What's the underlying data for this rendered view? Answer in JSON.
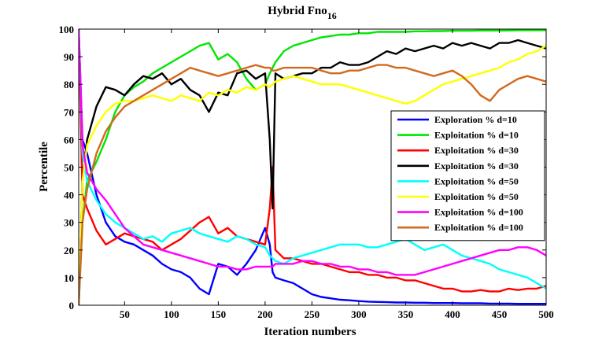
{
  "chart_data": {
    "type": "line",
    "title": "Hybrid Fno",
    "title_subscript": "16",
    "xlabel": "Iteration numbers",
    "ylabel": "Percentile",
    "xlim": [
      1,
      500
    ],
    "ylim": [
      0,
      100
    ],
    "x_ticks": [
      50,
      100,
      150,
      200,
      250,
      300,
      350,
      400,
      450,
      500
    ],
    "y_ticks": [
      0,
      10,
      20,
      30,
      40,
      50,
      60,
      70,
      80,
      90,
      100
    ],
    "legend_position": "center-right",
    "grid": false,
    "x": [
      1,
      5,
      10,
      20,
      30,
      40,
      50,
      60,
      70,
      80,
      90,
      100,
      110,
      120,
      130,
      140,
      150,
      160,
      170,
      180,
      190,
      200,
      205,
      208,
      211,
      220,
      230,
      240,
      250,
      260,
      270,
      280,
      290,
      300,
      310,
      320,
      330,
      340,
      350,
      360,
      370,
      380,
      390,
      400,
      410,
      420,
      430,
      440,
      450,
      460,
      470,
      480,
      490,
      500
    ],
    "series": [
      {
        "name": "Exploration % d=10",
        "color": "#0000ff",
        "values": [
          100,
          60,
          55,
          40,
          30,
          25,
          23,
          22,
          20,
          18,
          15,
          13,
          12,
          10,
          6,
          4,
          15,
          14,
          11,
          15,
          20,
          28,
          22,
          12,
          10,
          9,
          8,
          6,
          4,
          3,
          2.5,
          2,
          1.8,
          1.5,
          1.3,
          1.2,
          1.1,
          1,
          1,
          0.9,
          0.9,
          0.8,
          0.8,
          0.8,
          0.7,
          0.7,
          0.7,
          0.6,
          0.6,
          0.6,
          0.5,
          0.5,
          0.5,
          0.5
        ]
      },
      {
        "name": "Exploitation % d=10",
        "color": "#00e600",
        "values": [
          0,
          30,
          45,
          52,
          60,
          70,
          76,
          79,
          81,
          84,
          86,
          88,
          90,
          92,
          94,
          95,
          89,
          91,
          88,
          82,
          78,
          80,
          84,
          86,
          88,
          92,
          94,
          95,
          96,
          97,
          97.5,
          98,
          98,
          98.5,
          98.5,
          99,
          99,
          99,
          99,
          99.2,
          99.2,
          99.3,
          99.3,
          99.4,
          99.4,
          99.4,
          99.5,
          99.5,
          99.5,
          99.5,
          99.6,
          99.6,
          99.6,
          99.6
        ]
      },
      {
        "name": "Exploitation % d=30",
        "color": "#ff0000",
        "values": [
          100,
          40,
          35,
          27,
          22,
          24,
          26,
          25,
          24,
          23,
          20,
          22,
          24,
          27,
          30,
          32,
          26,
          28,
          25,
          24,
          23,
          22,
          35,
          50,
          20,
          17,
          17,
          16,
          15,
          15,
          14,
          13,
          12,
          12,
          11,
          11,
          10,
          10,
          9,
          9,
          8,
          7,
          6,
          6,
          5,
          5,
          5.5,
          5,
          5,
          6,
          5.5,
          6,
          6,
          7
        ]
      },
      {
        "name": "Exploitation % d=30",
        "color": "#000000",
        "values": [
          0,
          45,
          60,
          72,
          79,
          78,
          76,
          80,
          83,
          82,
          84,
          80,
          82,
          78,
          76,
          70,
          77,
          76,
          84,
          85,
          82,
          84,
          60,
          35,
          84,
          82,
          83,
          84,
          84,
          86,
          86,
          88,
          87,
          87,
          88,
          90,
          92,
          91,
          93,
          92,
          93,
          94,
          93,
          95,
          94,
          95,
          94,
          93,
          95,
          95,
          96,
          95,
          94,
          93
        ]
      },
      {
        "name": "Exploitation % d=50",
        "color": "#00ffff",
        "values": [
          100,
          55,
          45,
          38,
          33,
          30,
          28,
          26,
          24,
          25,
          23,
          26,
          27,
          28,
          26,
          25,
          24,
          23,
          25,
          24,
          22,
          21,
          18,
          17,
          16,
          15,
          17,
          18,
          19,
          20,
          21,
          22,
          22,
          22,
          21,
          21,
          22,
          23,
          24,
          22,
          20,
          21,
          22,
          20,
          18,
          17,
          16,
          15,
          13,
          12,
          11,
          10,
          8,
          6
        ]
      },
      {
        "name": "Exploitation % d=50",
        "color": "#ffff00",
        "values": [
          0,
          45,
          58,
          65,
          70,
          73,
          74,
          74,
          75,
          76,
          75,
          74,
          76,
          75,
          74,
          77,
          76,
          78,
          77,
          79,
          78,
          80,
          79,
          80,
          81,
          82,
          83,
          82,
          81,
          80,
          80,
          80,
          79,
          78,
          77,
          76,
          75,
          74,
          73,
          74,
          76,
          78,
          80,
          81,
          82,
          83,
          84,
          85,
          86,
          88,
          89,
          91,
          92,
          94
        ]
      },
      {
        "name": "Exploitation % d=100",
        "color": "#ff00ff",
        "values": [
          100,
          58,
          48,
          42,
          38,
          33,
          28,
          25,
          22,
          21,
          20,
          19,
          18,
          17,
          16,
          15,
          14,
          14,
          13,
          13,
          14,
          14,
          14,
          14,
          15,
          15,
          15,
          16,
          16,
          15,
          15,
          14,
          14,
          13,
          13,
          12,
          12,
          11,
          11,
          11,
          12,
          13,
          14,
          15,
          16,
          17,
          18,
          19,
          20,
          20,
          21,
          21,
          20,
          18
        ]
      },
      {
        "name": "Exploitation % d=100",
        "color": "#d2691e",
        "values": [
          0,
          30,
          42,
          55,
          63,
          68,
          72,
          74,
          76,
          78,
          80,
          82,
          84,
          86,
          85,
          84,
          83,
          84,
          85,
          86,
          87,
          86,
          86,
          85,
          85,
          86,
          86,
          86,
          86,
          85,
          84,
          84,
          85,
          85,
          86,
          87,
          87,
          86,
          86,
          85,
          84,
          83,
          84,
          85,
          83,
          80,
          76,
          74,
          78,
          80,
          82,
          83,
          82,
          81
        ]
      }
    ]
  }
}
